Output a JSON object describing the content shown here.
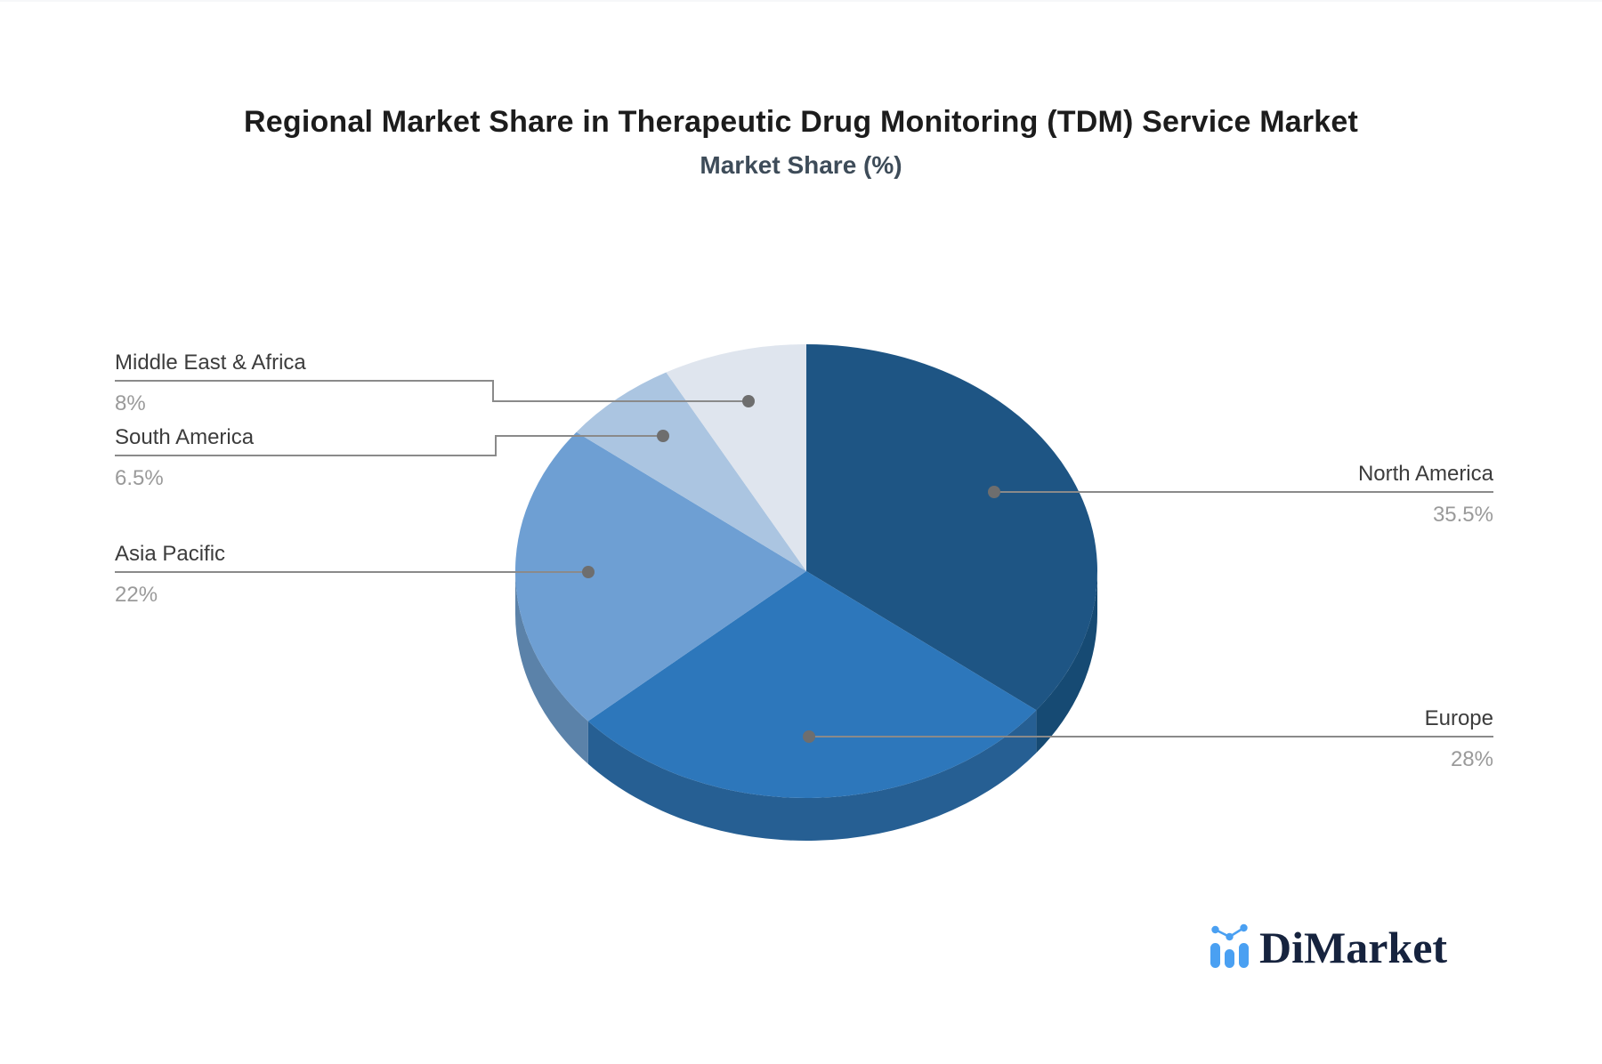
{
  "page": {
    "background": "#ffffff"
  },
  "chart_data": {
    "type": "pie",
    "style": "3d",
    "title": "Regional Market Share in Therapeutic Drug Monitoring (TDM) Service Market",
    "subtitle": "Market Share (%)",
    "unit": "%",
    "start_angle_deg": 0,
    "direction": "clockwise",
    "legend": "callout-labels",
    "slices": [
      {
        "label": "North America",
        "value": 35.5,
        "display": "35.5%",
        "color": "#1e5584",
        "side_color": "#164a73",
        "callout_side": "right"
      },
      {
        "label": "Europe",
        "value": 28,
        "display": "28%",
        "color": "#2d77bb",
        "side_color": "#265f93",
        "callout_side": "right"
      },
      {
        "label": "Asia Pacific",
        "value": 22,
        "display": "22%",
        "color": "#6e9fd3",
        "side_color": "#5b82a9",
        "callout_side": "left"
      },
      {
        "label": "South America",
        "value": 6.5,
        "display": "6.5%",
        "color": "#abc5e1",
        "side_color": "#8aa6c4",
        "callout_side": "left"
      },
      {
        "label": "Middle East & Africa",
        "value": 8,
        "display": "8%",
        "color": "#dfe5ee",
        "side_color": "#b9c2d1",
        "callout_side": "left"
      }
    ]
  },
  "colors": {
    "connector_line": "#8a8a8a",
    "connector_dot": "#6e6e6e",
    "label_text": "#3c3c3c",
    "value_text": "#9a9a9a",
    "title_text": "#1c1c1c",
    "subtitle_text": "#3e4c59",
    "logo_text_color": "#16233e",
    "logo_icon_color": "#4aa0f2"
  },
  "branding": {
    "logo_text": "DiMarket"
  }
}
